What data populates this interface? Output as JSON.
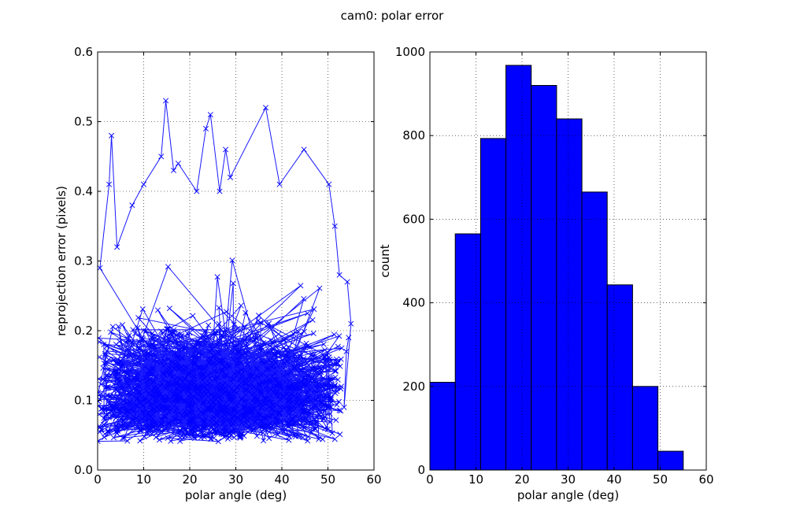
{
  "figure": {
    "title": "cam0: polar error"
  },
  "chart_data": [
    {
      "type": "line",
      "xlabel": "polar angle (deg)",
      "ylabel": "reprojection error (pixels)",
      "xlim": [
        0,
        60
      ],
      "ylim": [
        0,
        0.6
      ],
      "xticks": [
        "0",
        "10",
        "20",
        "30",
        "40",
        "50",
        "60"
      ],
      "yticks": [
        "0.0",
        "0.1",
        "0.2",
        "0.3",
        "0.4",
        "0.5",
        "0.6"
      ],
      "grid": true,
      "marker": "x",
      "color": "#0000ff",
      "highlights": [
        {
          "x": 0.5,
          "y": 0.29
        },
        {
          "x": 2.5,
          "y": 0.41
        },
        {
          "x": 3.0,
          "y": 0.48
        },
        {
          "x": 4.2,
          "y": 0.32
        },
        {
          "x": 7.5,
          "y": 0.38
        },
        {
          "x": 10.0,
          "y": 0.41
        },
        {
          "x": 13.8,
          "y": 0.45
        },
        {
          "x": 14.8,
          "y": 0.53
        },
        {
          "x": 16.5,
          "y": 0.43
        },
        {
          "x": 17.5,
          "y": 0.44
        },
        {
          "x": 21.5,
          "y": 0.4
        },
        {
          "x": 23.5,
          "y": 0.49
        },
        {
          "x": 24.5,
          "y": 0.51
        },
        {
          "x": 26.5,
          "y": 0.4
        },
        {
          "x": 27.8,
          "y": 0.46
        },
        {
          "x": 28.8,
          "y": 0.42
        },
        {
          "x": 36.5,
          "y": 0.52
        },
        {
          "x": 39.5,
          "y": 0.41
        },
        {
          "x": 44.8,
          "y": 0.46
        },
        {
          "x": 50.2,
          "y": 0.41
        },
        {
          "x": 51.5,
          "y": 0.35
        },
        {
          "x": 52.5,
          "y": 0.28
        },
        {
          "x": 54.2,
          "y": 0.27
        },
        {
          "x": 55.0,
          "y": 0.21
        }
      ]
    },
    {
      "type": "bar",
      "xlabel": "polar angle (deg)",
      "ylabel": "count",
      "xlim": [
        0,
        60
      ],
      "ylim": [
        0,
        1000
      ],
      "xticks": [
        "0",
        "10",
        "20",
        "30",
        "40",
        "50",
        "60"
      ],
      "yticks": [
        "0",
        "200",
        "400",
        "600",
        "800",
        "1000"
      ],
      "grid": true,
      "color": "#0000ff",
      "bin_edges": [
        0,
        5.5,
        11,
        16.5,
        22,
        27.5,
        33,
        38.5,
        44,
        49.5,
        55
      ],
      "values": [
        210,
        565,
        793,
        968,
        920,
        840,
        665,
        443,
        200,
        45
      ]
    }
  ]
}
